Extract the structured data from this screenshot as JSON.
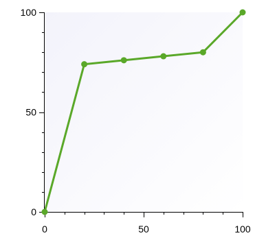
{
  "chart_data": {
    "type": "line",
    "title": "",
    "xlabel": "",
    "ylabel": "",
    "xlim": [
      0,
      100
    ],
    "ylim": [
      0,
      100
    ],
    "x_ticks": [
      0,
      50,
      100
    ],
    "y_ticks": [
      0,
      50,
      100
    ],
    "x_tick_labels": [
      "0",
      "50",
      "100"
    ],
    "y_tick_labels": [
      "0",
      "50",
      "100"
    ],
    "x_minor_step": 10,
    "y_minor_step": 10,
    "grid": false,
    "legend": "none",
    "series": [
      {
        "color": "#5aa829",
        "points": [
          {
            "x": 0,
            "y": 0
          },
          {
            "x": 20,
            "y": 74
          },
          {
            "x": 40,
            "y": 76
          },
          {
            "x": 60,
            "y": 78
          },
          {
            "x": 80,
            "y": 80
          },
          {
            "x": 100,
            "y": 100
          }
        ]
      }
    ],
    "colors": {
      "plot_background_top": "#f3f3fb",
      "plot_background_bottom": "#ffffff",
      "axis": "#000000"
    }
  }
}
